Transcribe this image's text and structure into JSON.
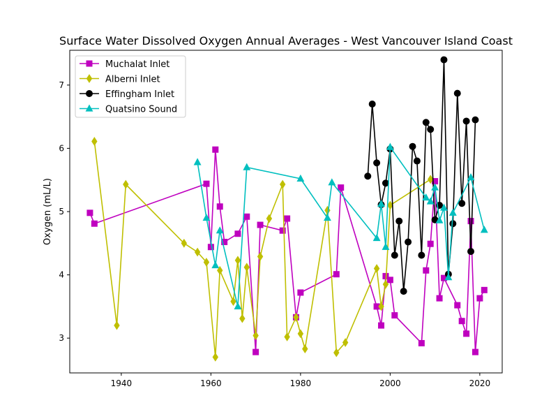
{
  "chart_data": {
    "type": "line",
    "title": "Surface Water Dissolved Oxygen Annual Averages - West Vancouver Island Coast",
    "xlabel": "",
    "ylabel": "Oxygen (mL/L)",
    "xlim": [
      1928.5,
      2025
    ],
    "ylim": [
      2.45,
      7.55
    ],
    "xticks": [
      1940,
      1960,
      1980,
      2000,
      2020
    ],
    "yticks": [
      3,
      4,
      5,
      6,
      7
    ],
    "grid": false,
    "legend_position": "top-left",
    "series": [
      {
        "name": "Muchalat Inlet",
        "color": "#bf00bf",
        "marker": "square",
        "x": [
          1933,
          1934,
          1959,
          1960,
          1961,
          1962,
          1963,
          1966,
          1968,
          1970,
          1971,
          1976,
          1977,
          1979,
          1980,
          1988,
          1989,
          1997,
          1998,
          1999,
          2000,
          2001,
          2007,
          2008,
          2009,
          2010,
          2011,
          2012,
          2015,
          2016,
          2017,
          2018,
          2019,
          2020,
          2021
        ],
        "y": [
          4.98,
          4.81,
          5.44,
          4.44,
          5.98,
          5.08,
          4.52,
          4.65,
          4.92,
          2.78,
          4.79,
          4.7,
          4.89,
          3.33,
          3.72,
          4.01,
          5.38,
          3.5,
          3.2,
          3.98,
          3.92,
          3.36,
          2.92,
          4.07,
          4.49,
          5.48,
          3.63,
          3.95,
          3.52,
          3.27,
          3.07,
          4.85,
          2.78,
          3.63,
          3.76
        ]
      },
      {
        "name": "Alberni Inlet",
        "color": "#bfbf00",
        "marker": "diamond",
        "x": [
          1934,
          1939,
          1941,
          1954,
          1957,
          1959,
          1961,
          1962,
          1965,
          1966,
          1967,
          1968,
          1970,
          1971,
          1973,
          1976,
          1977,
          1979,
          1980,
          1981,
          1986,
          1988,
          1990,
          1997,
          1998,
          1999,
          2000,
          2009
        ],
        "y": [
          6.11,
          3.2,
          5.43,
          4.5,
          4.36,
          4.2,
          2.7,
          4.07,
          3.58,
          4.23,
          3.31,
          4.12,
          3.04,
          4.29,
          4.89,
          5.43,
          3.02,
          3.33,
          3.07,
          2.83,
          5.02,
          2.77,
          2.93,
          4.1,
          3.5,
          3.85,
          5.1,
          5.51
        ]
      },
      {
        "name": "Effingham Inlet",
        "color": "#000000",
        "marker": "circle",
        "x": [
          1995,
          1996,
          1997,
          1998,
          1999,
          2000,
          2001,
          2002,
          2003,
          2004,
          2005,
          2006,
          2007,
          2008,
          2009,
          2010,
          2011,
          2012,
          2013,
          2014,
          2015,
          2016,
          2017,
          2018,
          2019
        ],
        "y": [
          5.56,
          6.7,
          5.77,
          5.11,
          5.45,
          5.99,
          4.31,
          4.85,
          3.74,
          4.52,
          6.03,
          5.8,
          4.31,
          6.41,
          6.3,
          4.87,
          5.1,
          7.4,
          4.01,
          4.81,
          6.87,
          5.13,
          6.43,
          4.37,
          6.45
        ]
      },
      {
        "name": "Quatsino Sound",
        "color": "#00bfbf",
        "marker": "triangle",
        "x": [
          1957,
          1959,
          1961,
          1962,
          1966,
          1968,
          1980,
          1986,
          1987,
          1997,
          1998,
          1999,
          2000,
          2008,
          2009,
          2010,
          2011,
          2012,
          2013,
          2014,
          2018,
          2021
        ],
        "y": [
          5.78,
          4.9,
          4.15,
          4.7,
          3.5,
          5.7,
          5.52,
          4.9,
          5.46,
          4.58,
          5.12,
          4.44,
          6.02,
          5.22,
          5.16,
          5.38,
          4.86,
          5.06,
          3.96,
          4.98,
          5.54,
          4.71
        ]
      }
    ]
  }
}
